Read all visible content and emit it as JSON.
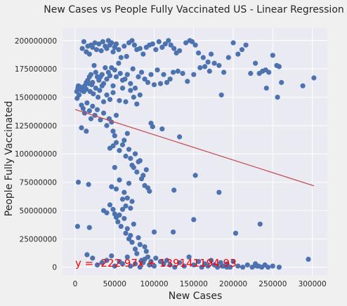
{
  "chart_data": {
    "type": "scatter",
    "title": "New Cases vs People Fully Vaccinated US - Linear Regression",
    "xlabel": "New Cases",
    "ylabel": "People Fully Vaccinated",
    "xlim": [
      -16000,
      319000
    ],
    "ylim": [
      -7000000,
      211000000
    ],
    "xticks": [
      0,
      50000,
      100000,
      150000,
      200000,
      250000,
      300000
    ],
    "yticks": [
      0,
      25000000,
      50000000,
      75000000,
      100000000,
      125000000,
      150000000,
      175000000,
      200000000
    ],
    "grid": true,
    "colors": {
      "points": "#4c72b0",
      "regression": "#c44e52",
      "equation": "#ff0000",
      "background": "#eaeaf2",
      "figure": "#f0f0f0"
    },
    "regression": {
      "slope": -222.97,
      "intercept": 139141194.93,
      "x_range": [
        0,
        302000
      ],
      "equation_label": "y = -222.97x + 139141194.93",
      "label_position": [
        0,
        500000
      ]
    },
    "points": [
      [
        2000,
        155000000
      ],
      [
        3500,
        158000000
      ],
      [
        5000,
        152000000
      ],
      [
        6500,
        159000000
      ],
      [
        8000,
        156000000
      ],
      [
        9500,
        157000000
      ],
      [
        11000,
        155000000
      ],
      [
        2500,
        149000000
      ],
      [
        4000,
        160000000
      ],
      [
        12000,
        158000000
      ],
      [
        9000,
        193000000
      ],
      [
        11000,
        199000000
      ],
      [
        14000,
        190000000
      ],
      [
        16000,
        195000000
      ],
      [
        18000,
        188000000
      ],
      [
        20000,
        196000000
      ],
      [
        22000,
        194000000
      ],
      [
        25000,
        198000000
      ],
      [
        27000,
        192000000
      ],
      [
        30000,
        197000000
      ],
      [
        33000,
        191000000
      ],
      [
        35000,
        199000000
      ],
      [
        38000,
        195000000
      ],
      [
        40000,
        193000000
      ],
      [
        42000,
        200000000
      ],
      [
        44000,
        196000000
      ],
      [
        46000,
        198000000
      ],
      [
        48000,
        190000000
      ],
      [
        50000,
        194000000
      ],
      [
        52000,
        197000000
      ],
      [
        55000,
        192000000
      ],
      [
        58000,
        185000000
      ],
      [
        62000,
        195000000
      ],
      [
        65000,
        186000000
      ],
      [
        68000,
        198000000
      ],
      [
        72000,
        200000000
      ],
      [
        75000,
        196000000
      ],
      [
        78000,
        192000000
      ],
      [
        82000,
        193000000
      ],
      [
        86000,
        188000000
      ],
      [
        90000,
        194000000
      ],
      [
        94000,
        196000000
      ],
      [
        98000,
        197000000
      ],
      [
        102000,
        192000000
      ],
      [
        106000,
        199000000
      ],
      [
        110000,
        194000000
      ],
      [
        114000,
        197000000
      ],
      [
        118000,
        200000000
      ],
      [
        121000,
        196000000
      ],
      [
        125000,
        193000000
      ],
      [
        128000,
        189000000
      ],
      [
        132000,
        191000000
      ],
      [
        140000,
        198000000
      ],
      [
        145000,
        200000000
      ],
      [
        148000,
        199000000
      ],
      [
        152000,
        196000000
      ],
      [
        156000,
        189000000
      ],
      [
        162000,
        185000000
      ],
      [
        168000,
        181000000
      ],
      [
        172000,
        188000000
      ],
      [
        176000,
        180000000
      ],
      [
        182000,
        178000000
      ],
      [
        188000,
        172000000
      ],
      [
        194000,
        185000000
      ],
      [
        200000,
        198000000
      ],
      [
        206000,
        188000000
      ],
      [
        211000,
        192000000
      ],
      [
        216000,
        196000000
      ],
      [
        222000,
        171000000
      ],
      [
        228000,
        180000000
      ],
      [
        233000,
        171000000
      ],
      [
        237000,
        173000000
      ],
      [
        241000,
        174000000
      ],
      [
        245000,
        172000000
      ],
      [
        250000,
        187000000
      ],
      [
        255000,
        178000000
      ],
      [
        258000,
        177000000
      ],
      [
        261000,
        163000000
      ],
      [
        288000,
        160000000
      ],
      [
        302000,
        167000000
      ],
      [
        14000,
        163000000
      ],
      [
        16000,
        165000000
      ],
      [
        18000,
        168000000
      ],
      [
        20000,
        170000000
      ],
      [
        22000,
        163000000
      ],
      [
        24000,
        178000000
      ],
      [
        26000,
        172000000
      ],
      [
        28000,
        168000000
      ],
      [
        30000,
        165000000
      ],
      [
        32000,
        168000000
      ],
      [
        34000,
        170000000
      ],
      [
        36000,
        162000000
      ],
      [
        38000,
        176000000
      ],
      [
        40000,
        166000000
      ],
      [
        42000,
        172000000
      ],
      [
        44000,
        169000000
      ],
      [
        46000,
        176000000
      ],
      [
        48000,
        160000000
      ],
      [
        50000,
        174000000
      ],
      [
        52000,
        168000000
      ],
      [
        55000,
        180000000
      ],
      [
        57000,
        171000000
      ],
      [
        60000,
        165000000
      ],
      [
        63000,
        166000000
      ],
      [
        66000,
        170000000
      ],
      [
        70000,
        162000000
      ],
      [
        73000,
        175000000
      ],
      [
        76000,
        158000000
      ],
      [
        80000,
        168000000
      ],
      [
        84000,
        172000000
      ],
      [
        88000,
        166000000
      ],
      [
        92000,
        163000000
      ],
      [
        96000,
        170000000
      ],
      [
        100000,
        161000000
      ],
      [
        104000,
        174000000
      ],
      [
        108000,
        162000000
      ],
      [
        112000,
        170000000
      ],
      [
        116000,
        163000000
      ],
      [
        120000,
        166000000
      ],
      [
        124000,
        172000000
      ],
      [
        130000,
        173000000
      ],
      [
        136000,
        171000000
      ],
      [
        142000,
        164000000
      ],
      [
        150000,
        170000000
      ],
      [
        158000,
        176000000
      ],
      [
        164000,
        177000000
      ],
      [
        170000,
        173000000
      ],
      [
        185000,
        152000000
      ],
      [
        242000,
        158000000
      ],
      [
        256000,
        150000000
      ],
      [
        12000,
        160000000
      ],
      [
        14000,
        157000000
      ],
      [
        17000,
        162000000
      ],
      [
        19000,
        155000000
      ],
      [
        21000,
        161000000
      ],
      [
        23000,
        153000000
      ],
      [
        26000,
        158000000
      ],
      [
        29000,
        150000000
      ],
      [
        31000,
        156000000
      ],
      [
        34000,
        160000000
      ],
      [
        36000,
        146000000
      ],
      [
        40000,
        152000000
      ],
      [
        44000,
        148000000
      ],
      [
        48000,
        154000000
      ],
      [
        56000,
        147000000
      ],
      [
        60000,
        158000000
      ],
      [
        64000,
        146000000
      ],
      [
        70000,
        156000000
      ],
      [
        74000,
        150000000
      ],
      [
        78000,
        144000000
      ],
      [
        82000,
        152000000
      ],
      [
        8000,
        143000000
      ],
      [
        10000,
        140000000
      ],
      [
        12000,
        136000000
      ],
      [
        15000,
        145000000
      ],
      [
        18000,
        138000000
      ],
      [
        20000,
        131000000
      ],
      [
        22000,
        142000000
      ],
      [
        25000,
        134000000
      ],
      [
        28000,
        139000000
      ],
      [
        32000,
        130000000
      ],
      [
        36000,
        136000000
      ],
      [
        40000,
        125000000
      ],
      [
        43000,
        131000000
      ],
      [
        46000,
        128000000
      ],
      [
        48000,
        120000000
      ],
      [
        50000,
        116000000
      ],
      [
        52000,
        134000000
      ],
      [
        96000,
        127000000
      ],
      [
        98000,
        124000000
      ],
      [
        110000,
        122000000
      ],
      [
        132000,
        115000000
      ],
      [
        8000,
        123000000
      ],
      [
        14000,
        120000000
      ],
      [
        44000,
        105000000
      ],
      [
        48000,
        107000000
      ],
      [
        52000,
        110000000
      ],
      [
        56000,
        103000000
      ],
      [
        60000,
        108000000
      ],
      [
        62000,
        112000000
      ],
      [
        64000,
        98000000
      ],
      [
        66000,
        118000000
      ],
      [
        68000,
        104000000
      ],
      [
        70000,
        96000000
      ],
      [
        72000,
        90000000
      ],
      [
        74000,
        88000000
      ],
      [
        76000,
        100000000
      ],
      [
        78000,
        84000000
      ],
      [
        80000,
        93000000
      ],
      [
        82000,
        94000000
      ],
      [
        84000,
        78000000
      ],
      [
        86000,
        81000000
      ],
      [
        88000,
        72000000
      ],
      [
        90000,
        86000000
      ],
      [
        92000,
        70000000
      ],
      [
        94000,
        67000000
      ],
      [
        50000,
        88000000
      ],
      [
        152000,
        81000000
      ],
      [
        46000,
        71000000
      ],
      [
        52000,
        69000000
      ],
      [
        56000,
        77000000
      ],
      [
        60000,
        60000000
      ],
      [
        62000,
        66000000
      ],
      [
        64000,
        54000000
      ],
      [
        66000,
        61000000
      ],
      [
        68000,
        74000000
      ],
      [
        70000,
        52000000
      ],
      [
        72000,
        58000000
      ],
      [
        125000,
        68000000
      ],
      [
        182000,
        66000000
      ],
      [
        4000,
        75000000
      ],
      [
        17000,
        73000000
      ],
      [
        36000,
        50000000
      ],
      [
        40000,
        48000000
      ],
      [
        44000,
        55000000
      ],
      [
        48000,
        51000000
      ],
      [
        50000,
        47000000
      ],
      [
        52000,
        44000000
      ],
      [
        54000,
        40000000
      ],
      [
        56000,
        46000000
      ],
      [
        58000,
        36000000
      ],
      [
        60000,
        51000000
      ],
      [
        62000,
        43000000
      ],
      [
        64000,
        30000000
      ],
      [
        66000,
        34000000
      ],
      [
        68000,
        25000000
      ],
      [
        70000,
        28000000
      ],
      [
        72000,
        22000000
      ],
      [
        74000,
        38000000
      ],
      [
        76000,
        16000000
      ],
      [
        78000,
        12000000
      ],
      [
        80000,
        26000000
      ],
      [
        82000,
        20000000
      ],
      [
        84000,
        6000000
      ],
      [
        86000,
        4000000
      ],
      [
        88000,
        18000000
      ],
      [
        90000,
        14000000
      ],
      [
        92000,
        9000000
      ],
      [
        94000,
        2000000
      ],
      [
        96000,
        5000000
      ],
      [
        3000,
        36000000
      ],
      [
        18000,
        35000000
      ],
      [
        100000,
        31000000
      ],
      [
        124000,
        31000000
      ],
      [
        150000,
        42000000
      ],
      [
        203000,
        30000000
      ],
      [
        234000,
        38000000
      ],
      [
        295000,
        7000000
      ],
      [
        102000,
        8000000
      ],
      [
        108000,
        5000000
      ],
      [
        15000,
        11000000
      ],
      [
        22000,
        8000000
      ],
      [
        28000,
        2000000
      ],
      [
        34000,
        4000000
      ],
      [
        40000,
        6000000
      ],
      [
        46000,
        10000000
      ],
      [
        50000,
        1000000
      ],
      [
        56000,
        5000000
      ],
      [
        60000,
        3000000
      ],
      [
        66000,
        9000000
      ],
      [
        70000,
        1000000
      ],
      [
        76000,
        3000000
      ],
      [
        82000,
        0
      ],
      [
        88000,
        7000000
      ],
      [
        94000,
        2000000
      ],
      [
        100000,
        1000000
      ],
      [
        112000,
        3000000
      ],
      [
        116000,
        6000000
      ],
      [
        120000,
        2000000
      ],
      [
        126000,
        0
      ],
      [
        132000,
        4000000
      ],
      [
        138000,
        1000000
      ],
      [
        144000,
        9000000
      ],
      [
        150000,
        2000000
      ],
      [
        156000,
        5000000
      ],
      [
        160000,
        0
      ],
      [
        164000,
        3000000
      ],
      [
        168000,
        1000000
      ],
      [
        172000,
        6000000
      ],
      [
        176000,
        2000000
      ],
      [
        180000,
        0
      ],
      [
        184000,
        4000000
      ],
      [
        188000,
        1000000
      ],
      [
        192000,
        3000000
      ],
      [
        196000,
        0
      ],
      [
        200000,
        5000000
      ],
      [
        206000,
        1000000
      ],
      [
        212000,
        0
      ],
      [
        218000,
        2000000
      ],
      [
        224000,
        0
      ],
      [
        228000,
        3000000
      ],
      [
        232000,
        1000000
      ],
      [
        236000,
        0
      ],
      [
        240000,
        2000000
      ],
      [
        244000,
        0
      ],
      [
        250000,
        1000000
      ],
      [
        258000,
        0
      ],
      [
        192000,
        0
      ],
      [
        186000,
        1000000
      ],
      [
        230000,
        1000000
      ]
    ]
  }
}
